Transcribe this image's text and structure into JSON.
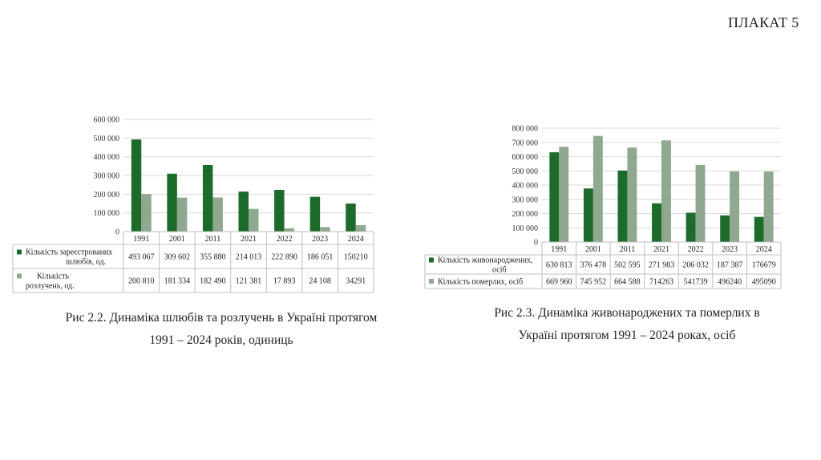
{
  "poster_label": "ПЛАКАТ 5",
  "colors": {
    "series1": "#1d6b2a",
    "series2": "#8fa88f",
    "grid": "#d9d9d9",
    "table_line": "#bfbfbf"
  },
  "chart_data": [
    {
      "type": "bar",
      "categories": [
        "1991",
        "2001",
        "2011",
        "2021",
        "2022",
        "2023",
        "2024"
      ],
      "y_ticks": [
        "0",
        "100 000",
        "200 000",
        "300 000",
        "400 000",
        "500 000",
        "600 000"
      ],
      "ylim": [
        0,
        600000
      ],
      "grid": true,
      "legend": "data-table",
      "series": [
        {
          "name": "Кількість зареєстрованих шлюбів, од.",
          "name_lines": [
            "Кількість зареєстрованих",
            "шлюбів, од."
          ],
          "values": [
            493067,
            309602,
            355880,
            214013,
            222890,
            186051,
            150210
          ],
          "labels": [
            "493 067",
            "309 602",
            "355 880",
            "214 013",
            "222 890",
            "186 051",
            "150210"
          ]
        },
        {
          "name": "Кількість розлучень, од.",
          "name_lines": [
            "Кількість",
            "розлучень, од."
          ],
          "values": [
            200810,
            181334,
            182490,
            121381,
            17893,
            24108,
            34291
          ],
          "labels": [
            "200 810",
            "181 334",
            "182 490",
            "121 381",
            "17 893",
            "24 108",
            "34291"
          ]
        }
      ]
    },
    {
      "type": "bar",
      "categories": [
        "1991",
        "2001",
        "2011",
        "2021",
        "2022",
        "2023",
        "2024"
      ],
      "y_ticks": [
        "0",
        "100 000",
        "200 000",
        "300 000",
        "400 000",
        "500 000",
        "600 000",
        "700 000",
        "800 000"
      ],
      "ylim": [
        0,
        800000
      ],
      "grid": true,
      "legend": "data-table",
      "series": [
        {
          "name": "Кількість живонароджених, осіб",
          "name_lines": [
            "Кількість живонароджених,",
            "осіб"
          ],
          "values": [
            630813,
            376478,
            502595,
            271983,
            206032,
            187387,
            176679
          ],
          "labels": [
            "630 813",
            "376 478",
            "502 595",
            "271 983",
            "206 032",
            "187 387",
            "176679"
          ]
        },
        {
          "name": "Кількість померлих, осіб",
          "name_lines": [
            "Кількість померлих, осіб"
          ],
          "values": [
            669960,
            745952,
            664588,
            714263,
            541739,
            496240,
            495090
          ],
          "labels": [
            "669 960",
            "745 952",
            "664 588",
            "714263",
            "541739",
            "496240",
            "495090"
          ]
        }
      ]
    }
  ],
  "captions": {
    "left": [
      "Рис 2.2. Динаміка шлюбів та розлучень в Україні протягом",
      "1991 – 2024 років, одиниць"
    ],
    "right": [
      "Рис 2.3. Динаміка живонароджених та померлих в",
      "Україні протягом 1991 – 2024 роках, осіб"
    ]
  }
}
